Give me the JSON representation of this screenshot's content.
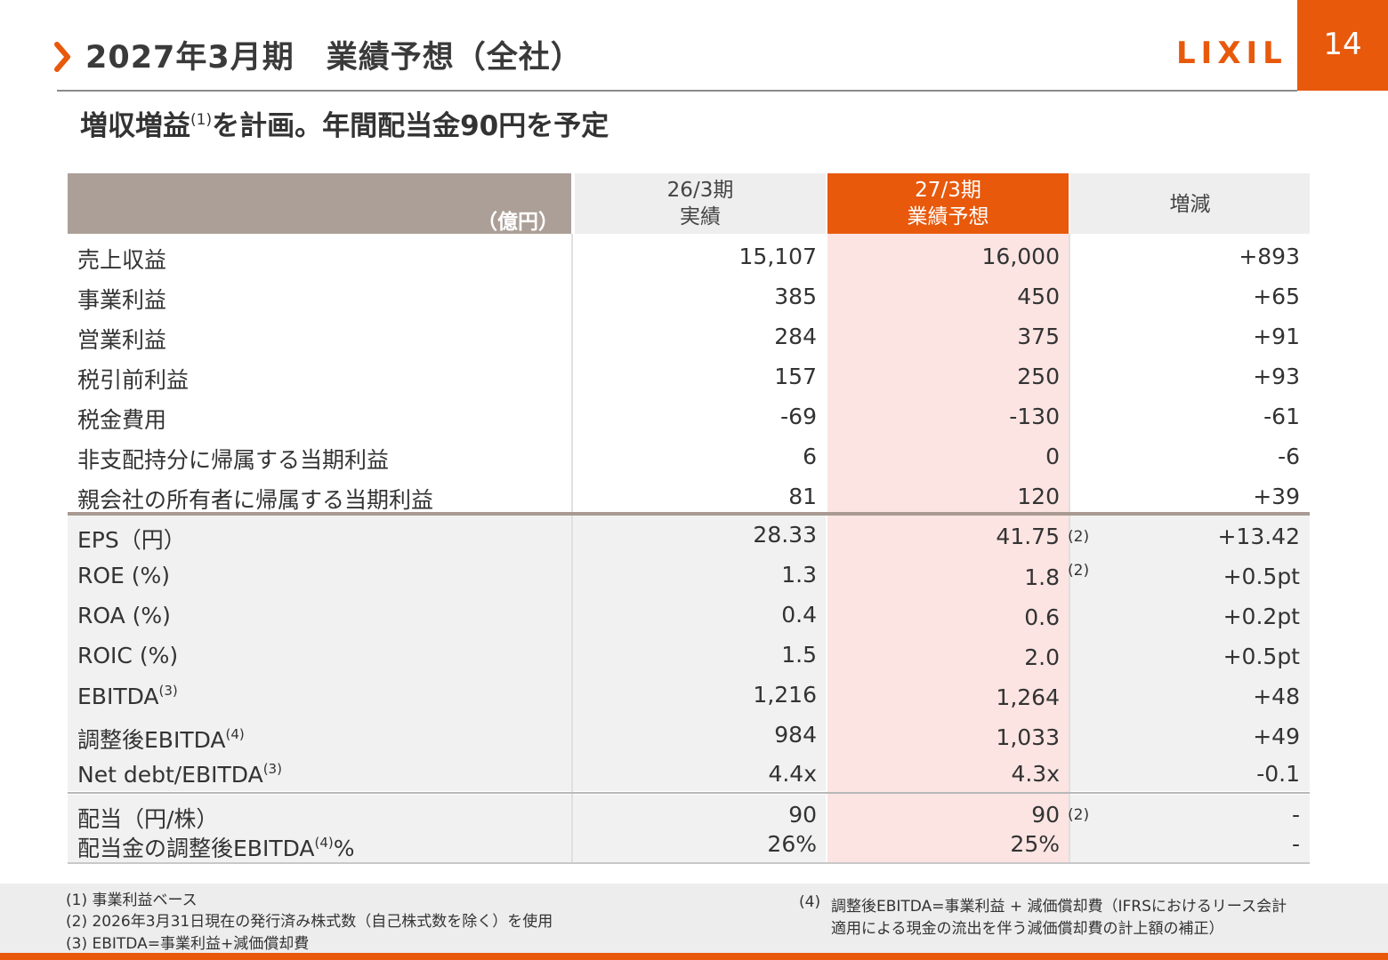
{
  "header": {
    "title": "2027年3月期　業績予想（全社）",
    "logo_text": "LIXIL",
    "page_number": "14",
    "accent_color": "#e8590c"
  },
  "subtitle": {
    "before": "増収増益",
    "note": "(1)",
    "after": "を計画。年間配当金90円を予定"
  },
  "table": {
    "unit": "（億円）",
    "col_26_line1": "26/3期",
    "col_26_line2": "実績",
    "col_27_line1": "27/3期",
    "col_27_line2": "業績予想",
    "col_diff": "増減",
    "rows": [
      {
        "label": "売上収益",
        "sup": "",
        "v26": "15,107",
        "v27": "16,000",
        "diff": "+893",
        "note": ""
      },
      {
        "label": "事業利益",
        "sup": "",
        "v26": "385",
        "v27": "450",
        "diff": "+65",
        "note": ""
      },
      {
        "label": "営業利益",
        "sup": "",
        "v26": "284",
        "v27": "375",
        "diff": "+91",
        "note": ""
      },
      {
        "label": "税引前利益",
        "sup": "",
        "v26": "157",
        "v27": "250",
        "diff": "+93",
        "note": ""
      },
      {
        "label": "税金費用",
        "sup": "",
        "v26": "-69",
        "v27": "-130",
        "diff": "-61",
        "note": ""
      },
      {
        "label": "非支配持分に帰属する当期利益",
        "sup": "",
        "v26": "6",
        "v27": "0",
        "diff": "-6",
        "note": ""
      },
      {
        "label": "親会社の所有者に帰属する当期利益",
        "sup": "",
        "v26": "81",
        "v27": "120",
        "diff": "+39",
        "note": ""
      },
      {
        "label": "EPS（円）",
        "sup": "",
        "v26": "28.33",
        "v27": "41.75",
        "diff": "+13.42",
        "note": "(2)"
      },
      {
        "label": "ROE (%)",
        "sup": "",
        "v26": "1.3",
        "v27": "1.8",
        "diff": "+0.5pt",
        "note": "(2)"
      },
      {
        "label": "ROA (%)",
        "sup": "",
        "v26": "0.4",
        "v27": "0.6",
        "diff": "+0.2pt",
        "note": ""
      },
      {
        "label": "ROIC (%)",
        "sup": "",
        "v26": "1.5",
        "v27": "2.0",
        "diff": "+0.5pt",
        "note": ""
      },
      {
        "label": "EBITDA",
        "sup": "(3)",
        "v26": "1,216",
        "v27": "1,264",
        "diff": "+48",
        "note": ""
      },
      {
        "label": "調整後EBITDA",
        "sup": "(4)",
        "v26": "984",
        "v27": "1,033",
        "diff": "+49",
        "note": ""
      },
      {
        "label": "Net debt/EBITDA",
        "sup": "(3)",
        "v26": "4.4x",
        "v27": "4.3x",
        "diff": "-0.1",
        "note": ""
      }
    ],
    "dividend": {
      "label": "配当（円/株）",
      "v26": "90",
      "v27": "90",
      "diff": "-",
      "note": "(2)"
    },
    "payout": {
      "label": "配当金の調整後EBITDA",
      "sup": "(4)",
      "suffix": "%",
      "v26": "26%",
      "v27": "25%",
      "diff": "-"
    }
  },
  "footnotes": {
    "n1": "(1)  事業利益ベース",
    "n2": "(2)  2026年3月31日現在の発行済み株式数（自己株式数を除く）を使用",
    "n3": "(3)  EBITDA=事業利益+減価償却費",
    "n4_mark": "(4)",
    "n4_line1": "調整後EBITDA=事業利益 + 減価償却費（IFRSにおけるリース会計",
    "n4_line2": "適用による現金の流出を伴う減価償却費の計上額の補正）"
  }
}
